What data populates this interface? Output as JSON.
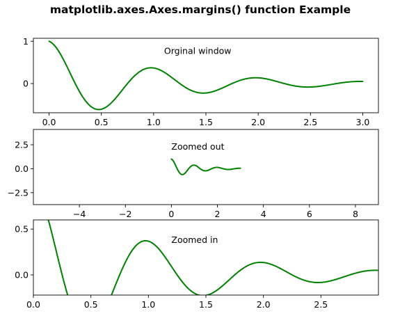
{
  "figure": {
    "title": "matplotlib.axes.Axes.margins() function Example"
  },
  "colors": {
    "line": "#008000",
    "axes": "#000000"
  },
  "chart_data": [
    {
      "type": "line",
      "function": "exp(-x)*cos(2*pi*x)",
      "x_range": [
        0.0,
        3.0
      ],
      "xlim": [
        -0.15,
        3.15
      ],
      "ylim": [
        -0.69,
        1.07
      ],
      "xticks": [
        0.0,
        0.5,
        1.0,
        1.5,
        2.0,
        2.5,
        3.0
      ],
      "xtick_labels": [
        "0.0",
        "0.5",
        "1.0",
        "1.5",
        "2.0",
        "2.5",
        "3.0"
      ],
      "yticks": [
        0,
        1
      ],
      "ytick_labels": [
        "0",
        "1"
      ],
      "annotation": {
        "text": "Orginal window",
        "x": 1.1,
        "y": 0.7
      }
    },
    {
      "type": "line",
      "function": "exp(-x)*cos(2*pi*x)",
      "x_range": [
        0.0,
        3.0
      ],
      "xlim": [
        -6.0,
        9.0
      ],
      "ylim": [
        -3.75,
        4.1
      ],
      "xticks": [
        -4,
        -2,
        0,
        2,
        4,
        6,
        8
      ],
      "xtick_labels": [
        "−4",
        "−2",
        "0",
        "2",
        "4",
        "6",
        "8"
      ],
      "yticks": [
        -2.5,
        0.0,
        2.5
      ],
      "ytick_labels": [
        "−2.5",
        "0.0",
        "2.5"
      ],
      "annotation": {
        "text": "Zoomed out",
        "x": 0.0,
        "y": 2.0
      }
    },
    {
      "type": "line",
      "function": "exp(-x)*cos(2*pi*x)",
      "x_range": [
        0.0,
        3.0
      ],
      "xlim": [
        0.0,
        3.0
      ],
      "ylim": [
        -0.22,
        0.6
      ],
      "xticks": [
        0.0,
        0.5,
        1.0,
        1.5,
        2.0,
        2.5
      ],
      "xtick_labels": [
        "0.0",
        "0.5",
        "1.0",
        "1.5",
        "2.0",
        "2.5"
      ],
      "yticks": [
        0.0,
        0.5
      ],
      "ytick_labels": [
        "0.0",
        "0.5"
      ],
      "annotation": {
        "text": "Zoomed in",
        "x": 1.2,
        "y": 0.35
      }
    }
  ]
}
